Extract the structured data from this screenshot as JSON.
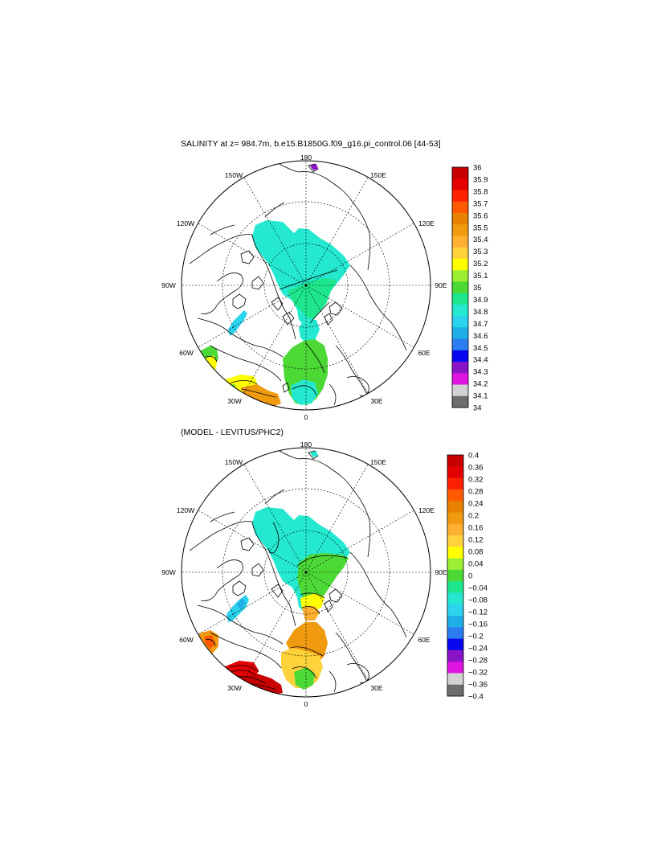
{
  "figure": {
    "panels": [
      {
        "title": "SALINITY at z= 984.7m, b.e15.B1850G.f09_g16.pi_control.06 [44-53]",
        "lon_labels": [
          "180",
          "150E",
          "120E",
          "90E",
          "60E",
          "30E",
          "0",
          "30W",
          "60W",
          "90W",
          "120W",
          "150W"
        ],
        "colorbar": {
          "labels": [
            "36",
            "35.9",
            "35.8",
            "35.7",
            "35.6",
            "35.5",
            "35.4",
            "35.3",
            "35.2",
            "35.1",
            "35",
            "34.9",
            "34.8",
            "34.7",
            "34.6",
            "34.5",
            "34.4",
            "34.3",
            "34.2",
            "34.1",
            "34"
          ],
          "colors": [
            "#c80000",
            "#e40000",
            "#ff2000",
            "#ff5a00",
            "#e88000",
            "#f09a10",
            "#ffb030",
            "#ffd23c",
            "#ffff00",
            "#9bef33",
            "#4cd936",
            "#1ee68c",
            "#24e8d0",
            "#2bd3ef",
            "#1eafe6",
            "#2a7cf0",
            "#0808f0",
            "#8a14c8",
            "#e014e0",
            "#d2d2d2",
            "#6c6c6c"
          ]
        }
      },
      {
        "title": "(MODEL - LEVITUS/PHC2)",
        "lon_labels": [
          "180",
          "150E",
          "120E",
          "90E",
          "60E",
          "30E",
          "0",
          "30W",
          "60W",
          "90W",
          "120W",
          "150W"
        ],
        "colorbar": {
          "labels": [
            "0.4",
            "0.36",
            "0.32",
            "0.28",
            "0.24",
            "0.2",
            "0.16",
            "0.12",
            "0.08",
            "0.04",
            "0",
            "−0.04",
            "−0.08",
            "−0.12",
            "−0.16",
            "−0.2",
            "−0.24",
            "−0.28",
            "−0.32",
            "−0.36",
            "−0.4"
          ],
          "colors": [
            "#c80000",
            "#e40000",
            "#ff2000",
            "#ff5a00",
            "#e88000",
            "#f09a10",
            "#ffb030",
            "#ffd23c",
            "#ffff00",
            "#9bef33",
            "#4cd936",
            "#1ee68c",
            "#24e8d0",
            "#2bd3ef",
            "#1eafe6",
            "#2a7cf0",
            "#0808f0",
            "#8a14c8",
            "#e014e0",
            "#d2d2d2",
            "#6c6c6c"
          ]
        }
      }
    ]
  }
}
